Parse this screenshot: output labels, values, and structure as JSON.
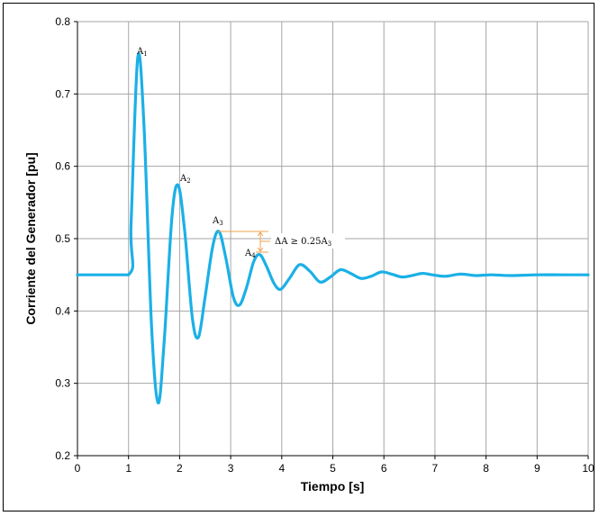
{
  "chart_data": {
    "type": "line",
    "title": "",
    "xlabel": "Tiempo [s]",
    "ylabel": "Corriente del Generador [pu]",
    "xlim": [
      0,
      10
    ],
    "ylim": [
      0.2,
      0.8
    ],
    "x_ticks": [
      "0",
      "1",
      "2",
      "3",
      "4",
      "5",
      "6",
      "7",
      "8",
      "9",
      "10"
    ],
    "y_ticks": [
      "0.2",
      "0.3",
      "0.4",
      "0.5",
      "0.6",
      "0.7",
      "0.8"
    ],
    "grid": true,
    "line_color": "#1bb0e6",
    "series": [
      {
        "x": [
          0,
          1.0,
          1.05,
          1.18,
          1.3,
          1.45,
          1.58,
          1.7,
          1.85,
          1.97,
          2.1,
          2.25,
          2.37,
          2.5,
          2.65,
          2.77,
          2.9,
          3.05,
          3.17,
          3.3,
          3.45,
          3.57,
          3.7,
          3.85,
          3.98,
          4.15,
          4.35,
          4.55,
          4.75,
          4.95,
          5.15,
          5.35,
          5.55,
          5.75,
          5.95,
          6.15,
          6.35,
          6.55,
          6.75,
          6.95,
          7.2,
          7.5,
          7.8,
          8.1,
          8.5,
          9.0,
          9.5,
          10.0
        ],
        "y": [
          0.45,
          0.45,
          0.52,
          0.75,
          0.66,
          0.38,
          0.273,
          0.36,
          0.53,
          0.574,
          0.51,
          0.39,
          0.364,
          0.42,
          0.49,
          0.51,
          0.475,
          0.42,
          0.408,
          0.43,
          0.468,
          0.478,
          0.462,
          0.438,
          0.43,
          0.445,
          0.464,
          0.455,
          0.44,
          0.447,
          0.457,
          0.452,
          0.445,
          0.448,
          0.454,
          0.451,
          0.447,
          0.449,
          0.452,
          0.45,
          0.448,
          0.451,
          0.449,
          0.45,
          0.449,
          0.45,
          0.45,
          0.45
        ]
      }
    ],
    "annotations": {
      "A1": "A",
      "A1_sub": "1",
      "A2": "A",
      "A2_sub": "2",
      "A3": "A",
      "A3_sub": "3",
      "A4": "A",
      "A4_sub": "4",
      "criterion": "ΔA ≥ 0.25A",
      "criterion_sub": "3",
      "marker_color": "#f0a04b"
    }
  }
}
